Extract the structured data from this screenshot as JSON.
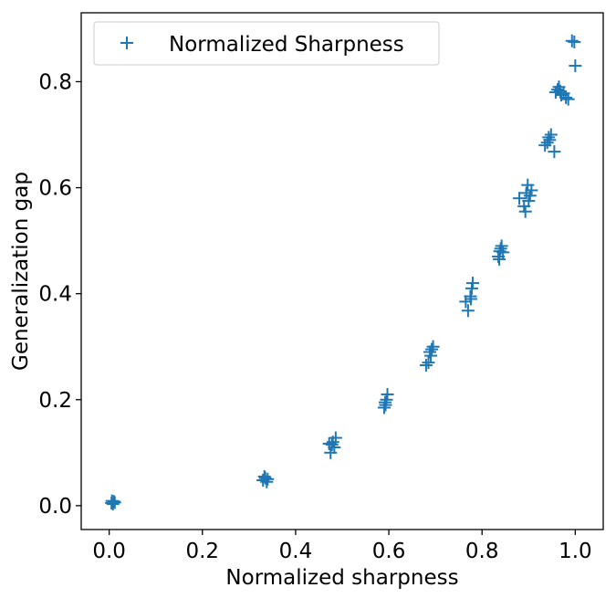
{
  "chart_data": {
    "type": "scatter",
    "xlabel": "Normalized sharpness",
    "ylabel": "Generalization gap",
    "xlim": [
      -0.06,
      1.06
    ],
    "ylim": [
      -0.045,
      0.93
    ],
    "xticks": [
      "0.0",
      "0.2",
      "0.4",
      "0.6",
      "0.8",
      "1.0"
    ],
    "yticks": [
      "0.0",
      "0.2",
      "0.4",
      "0.6",
      "0.8"
    ],
    "grid": false,
    "legend_position": "top-left",
    "series": [
      {
        "name": "Normalized Sharpness",
        "color": "#1f77b4",
        "marker": "+",
        "points": [
          [
            0.005,
            0.005
          ],
          [
            0.01,
            0.008
          ],
          [
            0.008,
            0.003
          ],
          [
            0.012,
            0.006
          ],
          [
            0.006,
            0.009
          ],
          [
            0.33,
            0.048
          ],
          [
            0.335,
            0.052
          ],
          [
            0.338,
            0.045
          ],
          [
            0.34,
            0.05
          ],
          [
            0.333,
            0.055
          ],
          [
            0.475,
            0.1
          ],
          [
            0.478,
            0.115
          ],
          [
            0.48,
            0.12
          ],
          [
            0.483,
            0.11
          ],
          [
            0.486,
            0.128
          ],
          [
            0.472,
            0.117
          ],
          [
            0.59,
            0.185
          ],
          [
            0.592,
            0.195
          ],
          [
            0.595,
            0.2
          ],
          [
            0.597,
            0.21
          ],
          [
            0.593,
            0.19
          ],
          [
            0.68,
            0.265
          ],
          [
            0.685,
            0.27
          ],
          [
            0.688,
            0.29
          ],
          [
            0.692,
            0.295
          ],
          [
            0.695,
            0.3
          ],
          [
            0.69,
            0.283
          ],
          [
            0.765,
            0.385
          ],
          [
            0.77,
            0.368
          ],
          [
            0.775,
            0.395
          ],
          [
            0.778,
            0.41
          ],
          [
            0.78,
            0.42
          ],
          [
            0.776,
            0.39
          ],
          [
            0.835,
            0.47
          ],
          [
            0.838,
            0.48
          ],
          [
            0.84,
            0.485
          ],
          [
            0.842,
            0.49
          ],
          [
            0.845,
            0.478
          ],
          [
            0.837,
            0.465
          ],
          [
            0.88,
            0.58
          ],
          [
            0.89,
            0.565
          ],
          [
            0.893,
            0.555
          ],
          [
            0.895,
            0.59
          ],
          [
            0.898,
            0.605
          ],
          [
            0.9,
            0.575
          ],
          [
            0.903,
            0.585
          ],
          [
            0.906,
            0.595
          ],
          [
            0.935,
            0.68
          ],
          [
            0.94,
            0.685
          ],
          [
            0.943,
            0.695
          ],
          [
            0.945,
            0.69
          ],
          [
            0.948,
            0.7
          ],
          [
            0.955,
            0.668
          ],
          [
            0.958,
            0.78
          ],
          [
            0.962,
            0.785
          ],
          [
            0.965,
            0.79
          ],
          [
            0.97,
            0.775
          ],
          [
            0.975,
            0.778
          ],
          [
            0.98,
            0.77
          ],
          [
            0.985,
            0.767
          ],
          [
            0.968,
            0.782
          ],
          [
            0.993,
            0.877
          ],
          [
            0.998,
            0.875
          ],
          [
            1.0,
            0.83
          ]
        ]
      }
    ]
  }
}
